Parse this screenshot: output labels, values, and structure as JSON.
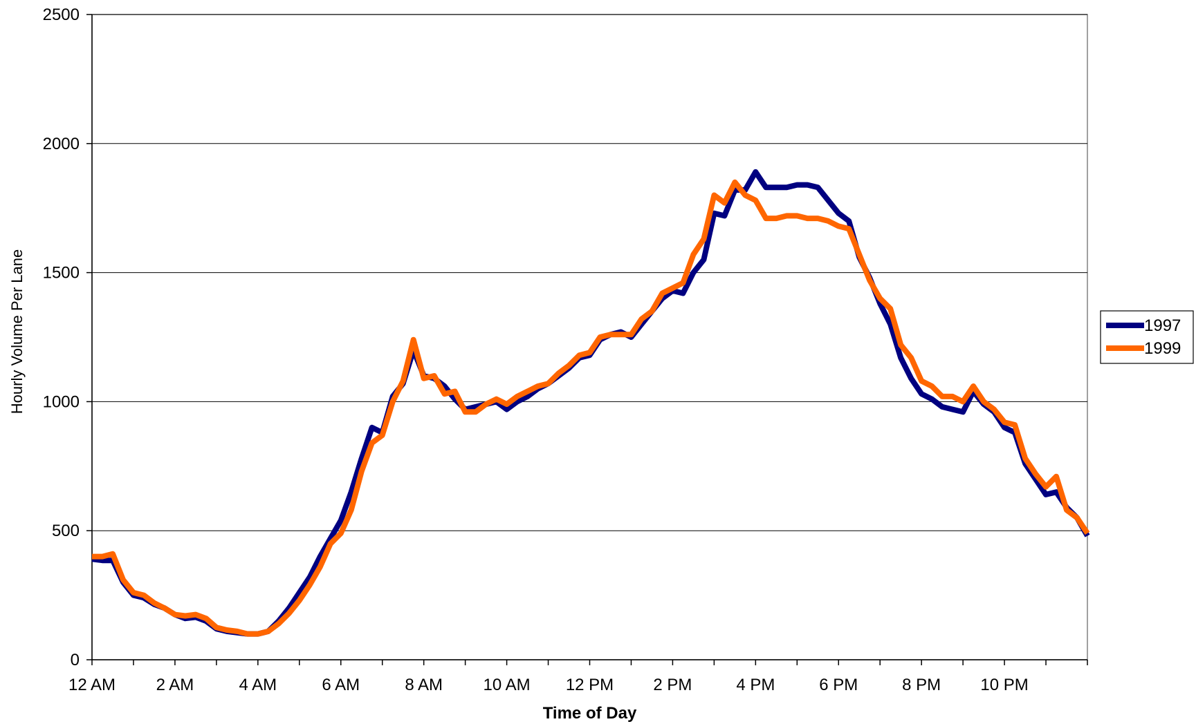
{
  "chart_data": {
    "type": "line",
    "title": "",
    "xlabel": "Time of Day",
    "ylabel": "Hourly Volume Per Lane",
    "xlim": [
      0,
      24
    ],
    "ylim": [
      0,
      2500
    ],
    "y_ticks": [
      0,
      500,
      1000,
      1500,
      2000,
      2500
    ],
    "y_tick_labels": [
      "0",
      "500",
      "1000",
      "1500",
      "2000",
      "2500"
    ],
    "x_ticks": [
      0,
      2,
      4,
      6,
      8,
      10,
      12,
      14,
      16,
      18,
      20,
      22
    ],
    "x_tick_labels": [
      "12 AM",
      "2 AM",
      "4 AM",
      "6 AM",
      "8 AM",
      "10 AM",
      "12 PM",
      "2 PM",
      "4 PM",
      "6 PM",
      "8 PM",
      "10 PM"
    ],
    "x_minor_ticks": [
      0,
      1,
      2,
      3,
      4,
      5,
      6,
      7,
      8,
      9,
      10,
      11,
      12,
      13,
      14,
      15,
      16,
      17,
      18,
      19,
      20,
      21,
      22,
      23,
      24
    ],
    "grid": "horizontal major lines",
    "legend_position": "right",
    "series": [
      {
        "name": "1997",
        "color": "#000080",
        "points": [
          [
            0,
            390
          ],
          [
            0.25,
            385
          ],
          [
            0.5,
            385
          ],
          [
            0.75,
            300
          ],
          [
            1,
            250
          ],
          [
            1.25,
            240
          ],
          [
            1.5,
            215
          ],
          [
            1.75,
            200
          ],
          [
            2,
            175
          ],
          [
            2.25,
            160
          ],
          [
            2.5,
            165
          ],
          [
            2.75,
            150
          ],
          [
            3,
            120
          ],
          [
            3.25,
            110
          ],
          [
            3.5,
            105
          ],
          [
            3.75,
            100
          ],
          [
            4,
            100
          ],
          [
            4.25,
            110
          ],
          [
            4.5,
            150
          ],
          [
            4.75,
            200
          ],
          [
            5,
            260
          ],
          [
            5.25,
            320
          ],
          [
            5.5,
            400
          ],
          [
            5.75,
            470
          ],
          [
            6,
            540
          ],
          [
            6.25,
            650
          ],
          [
            6.5,
            780
          ],
          [
            6.75,
            900
          ],
          [
            7,
            880
          ],
          [
            7.25,
            1020
          ],
          [
            7.5,
            1070
          ],
          [
            7.75,
            1200
          ],
          [
            8,
            1100
          ],
          [
            8.25,
            1090
          ],
          [
            8.5,
            1060
          ],
          [
            8.75,
            1010
          ],
          [
            9,
            970
          ],
          [
            9.25,
            980
          ],
          [
            9.5,
            990
          ],
          [
            9.75,
            1000
          ],
          [
            10,
            970
          ],
          [
            10.25,
            1000
          ],
          [
            10.5,
            1020
          ],
          [
            10.75,
            1050
          ],
          [
            11,
            1070
          ],
          [
            11.25,
            1100
          ],
          [
            11.5,
            1130
          ],
          [
            11.75,
            1170
          ],
          [
            12,
            1180
          ],
          [
            12.25,
            1240
          ],
          [
            12.5,
            1260
          ],
          [
            12.75,
            1270
          ],
          [
            13,
            1250
          ],
          [
            13.25,
            1300
          ],
          [
            13.5,
            1350
          ],
          [
            13.75,
            1400
          ],
          [
            14,
            1430
          ],
          [
            14.25,
            1420
          ],
          [
            14.5,
            1500
          ],
          [
            14.75,
            1550
          ],
          [
            15,
            1730
          ],
          [
            15.25,
            1720
          ],
          [
            15.5,
            1820
          ],
          [
            15.75,
            1820
          ],
          [
            16,
            1890
          ],
          [
            16.25,
            1830
          ],
          [
            16.5,
            1830
          ],
          [
            16.75,
            1830
          ],
          [
            17,
            1840
          ],
          [
            17.25,
            1840
          ],
          [
            17.5,
            1830
          ],
          [
            17.75,
            1780
          ],
          [
            18,
            1730
          ],
          [
            18.25,
            1700
          ],
          [
            18.5,
            1560
          ],
          [
            18.75,
            1480
          ],
          [
            19,
            1380
          ],
          [
            19.25,
            1300
          ],
          [
            19.5,
            1170
          ],
          [
            19.75,
            1090
          ],
          [
            20,
            1030
          ],
          [
            20.25,
            1010
          ],
          [
            20.5,
            980
          ],
          [
            20.75,
            970
          ],
          [
            21,
            960
          ],
          [
            21.25,
            1040
          ],
          [
            21.5,
            990
          ],
          [
            21.75,
            960
          ],
          [
            22,
            900
          ],
          [
            22.25,
            880
          ],
          [
            22.5,
            760
          ],
          [
            22.75,
            700
          ],
          [
            23,
            640
          ],
          [
            23.25,
            650
          ],
          [
            23.5,
            590
          ],
          [
            23.75,
            550
          ],
          [
            24,
            480
          ]
        ]
      },
      {
        "name": "1999",
        "color": "#FF6600",
        "points": [
          [
            0,
            400
          ],
          [
            0.25,
            400
          ],
          [
            0.5,
            410
          ],
          [
            0.75,
            310
          ],
          [
            1,
            260
          ],
          [
            1.25,
            250
          ],
          [
            1.5,
            220
          ],
          [
            1.75,
            200
          ],
          [
            2,
            175
          ],
          [
            2.25,
            170
          ],
          [
            2.5,
            175
          ],
          [
            2.75,
            160
          ],
          [
            3,
            125
          ],
          [
            3.25,
            115
          ],
          [
            3.5,
            110
          ],
          [
            3.75,
            100
          ],
          [
            4,
            100
          ],
          [
            4.25,
            110
          ],
          [
            4.5,
            140
          ],
          [
            4.75,
            180
          ],
          [
            5,
            230
          ],
          [
            5.25,
            290
          ],
          [
            5.5,
            360
          ],
          [
            5.75,
            450
          ],
          [
            6,
            490
          ],
          [
            6.25,
            580
          ],
          [
            6.5,
            730
          ],
          [
            6.75,
            840
          ],
          [
            7,
            870
          ],
          [
            7.25,
            1000
          ],
          [
            7.5,
            1080
          ],
          [
            7.75,
            1240
          ],
          [
            8,
            1090
          ],
          [
            8.25,
            1100
          ],
          [
            8.5,
            1030
          ],
          [
            8.75,
            1040
          ],
          [
            9,
            960
          ],
          [
            9.25,
            960
          ],
          [
            9.5,
            990
          ],
          [
            9.75,
            1010
          ],
          [
            10,
            990
          ],
          [
            10.25,
            1020
          ],
          [
            10.5,
            1040
          ],
          [
            10.75,
            1060
          ],
          [
            11,
            1070
          ],
          [
            11.25,
            1110
          ],
          [
            11.5,
            1140
          ],
          [
            11.75,
            1180
          ],
          [
            12,
            1190
          ],
          [
            12.25,
            1250
          ],
          [
            12.5,
            1260
          ],
          [
            12.75,
            1260
          ],
          [
            13,
            1260
          ],
          [
            13.25,
            1320
          ],
          [
            13.5,
            1350
          ],
          [
            13.75,
            1420
          ],
          [
            14,
            1440
          ],
          [
            14.25,
            1460
          ],
          [
            14.5,
            1570
          ],
          [
            14.75,
            1630
          ],
          [
            15,
            1800
          ],
          [
            15.25,
            1770
          ],
          [
            15.5,
            1850
          ],
          [
            15.75,
            1800
          ],
          [
            16,
            1780
          ],
          [
            16.25,
            1710
          ],
          [
            16.5,
            1710
          ],
          [
            16.75,
            1720
          ],
          [
            17,
            1720
          ],
          [
            17.25,
            1710
          ],
          [
            17.5,
            1710
          ],
          [
            17.75,
            1700
          ],
          [
            18,
            1680
          ],
          [
            18.25,
            1670
          ],
          [
            18.5,
            1570
          ],
          [
            18.75,
            1470
          ],
          [
            19,
            1400
          ],
          [
            19.25,
            1360
          ],
          [
            19.5,
            1220
          ],
          [
            19.75,
            1170
          ],
          [
            20,
            1080
          ],
          [
            20.25,
            1060
          ],
          [
            20.5,
            1020
          ],
          [
            20.75,
            1020
          ],
          [
            21,
            1000
          ],
          [
            21.25,
            1060
          ],
          [
            21.5,
            1000
          ],
          [
            21.75,
            970
          ],
          [
            22,
            920
          ],
          [
            22.25,
            910
          ],
          [
            22.5,
            780
          ],
          [
            22.75,
            720
          ],
          [
            23,
            670
          ],
          [
            23.25,
            710
          ],
          [
            23.5,
            580
          ],
          [
            23.75,
            550
          ],
          [
            24,
            490
          ]
        ]
      }
    ]
  }
}
